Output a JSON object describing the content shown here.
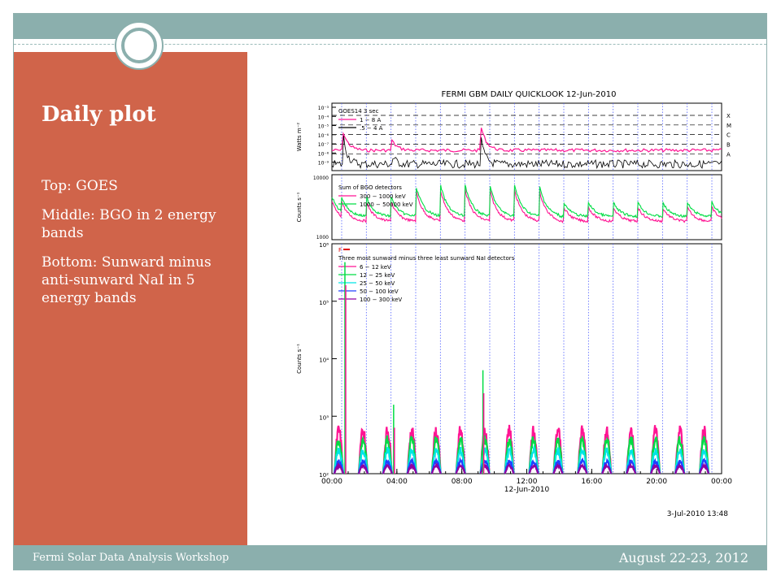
{
  "slide": {
    "title": "Daily plot",
    "bullets": [
      "Top: GOES",
      "Middle: BGO in 2 energy bands",
      "Bottom:  Sunward minus anti-sunward NaI in 5 energy bands"
    ],
    "footer_left": "Fermi Solar Data Analysis Workshop",
    "footer_right": "August 22-23, 2012"
  },
  "colors": {
    "panel": "#d0644a",
    "bars": "#8bafad",
    "magenta": "#ff1493",
    "green": "#00dd44",
    "cyan": "#00e5e5",
    "blue": "#2040ff",
    "purple": "#9000a0"
  },
  "chart_data": {
    "title": "FERMI GBM DAILY QUICKLOOK  12-Jun-2010",
    "footer_date": "3-Jul-2010 13:48",
    "xlabel": "12-Jun-2010",
    "x_ticks": [
      "00:00",
      "04:00",
      "08:00",
      "12:00",
      "16:00",
      "20:00",
      "00:00"
    ],
    "panels": [
      {
        "type": "line",
        "ylabel": "Watts m⁻²",
        "y_ticks": [
          "10⁻³",
          "10⁻⁴",
          "10⁻⁵",
          "10⁻⁶",
          "10⁻⁷",
          "10⁻⁸",
          "10⁻⁹"
        ],
        "class_labels": [
          "X",
          "M",
          "C",
          "B",
          "A"
        ],
        "legend_title": "GOES14 3 sec",
        "series": [
          {
            "name": "1 − 8 A"
          },
          {
            "name": ".5 − 4 A"
          }
        ]
      },
      {
        "type": "line",
        "ylabel": "Counts s⁻¹",
        "y_ticks": [
          "10000",
          "1000"
        ],
        "legend_title": "Sum of BGO detectors",
        "series": [
          {
            "name": "300 − 1000 keV"
          },
          {
            "name": "1000 − 50000 keV"
          }
        ]
      },
      {
        "type": "line",
        "ylabel": "Counts s⁻¹",
        "y_ticks": [
          "10⁶",
          "10⁵",
          "10⁴",
          "10³",
          "10²"
        ],
        "legend_title": "Three most sunward minus three least sunward NaI detectors",
        "flag_label": "F",
        "series": [
          {
            "name": "6 − 12 keV"
          },
          {
            "name": "12 − 25 keV"
          },
          {
            "name": "25 − 50 keV"
          },
          {
            "name": "50 − 100 keV"
          },
          {
            "name": "100 − 300 keV"
          }
        ]
      }
    ]
  }
}
